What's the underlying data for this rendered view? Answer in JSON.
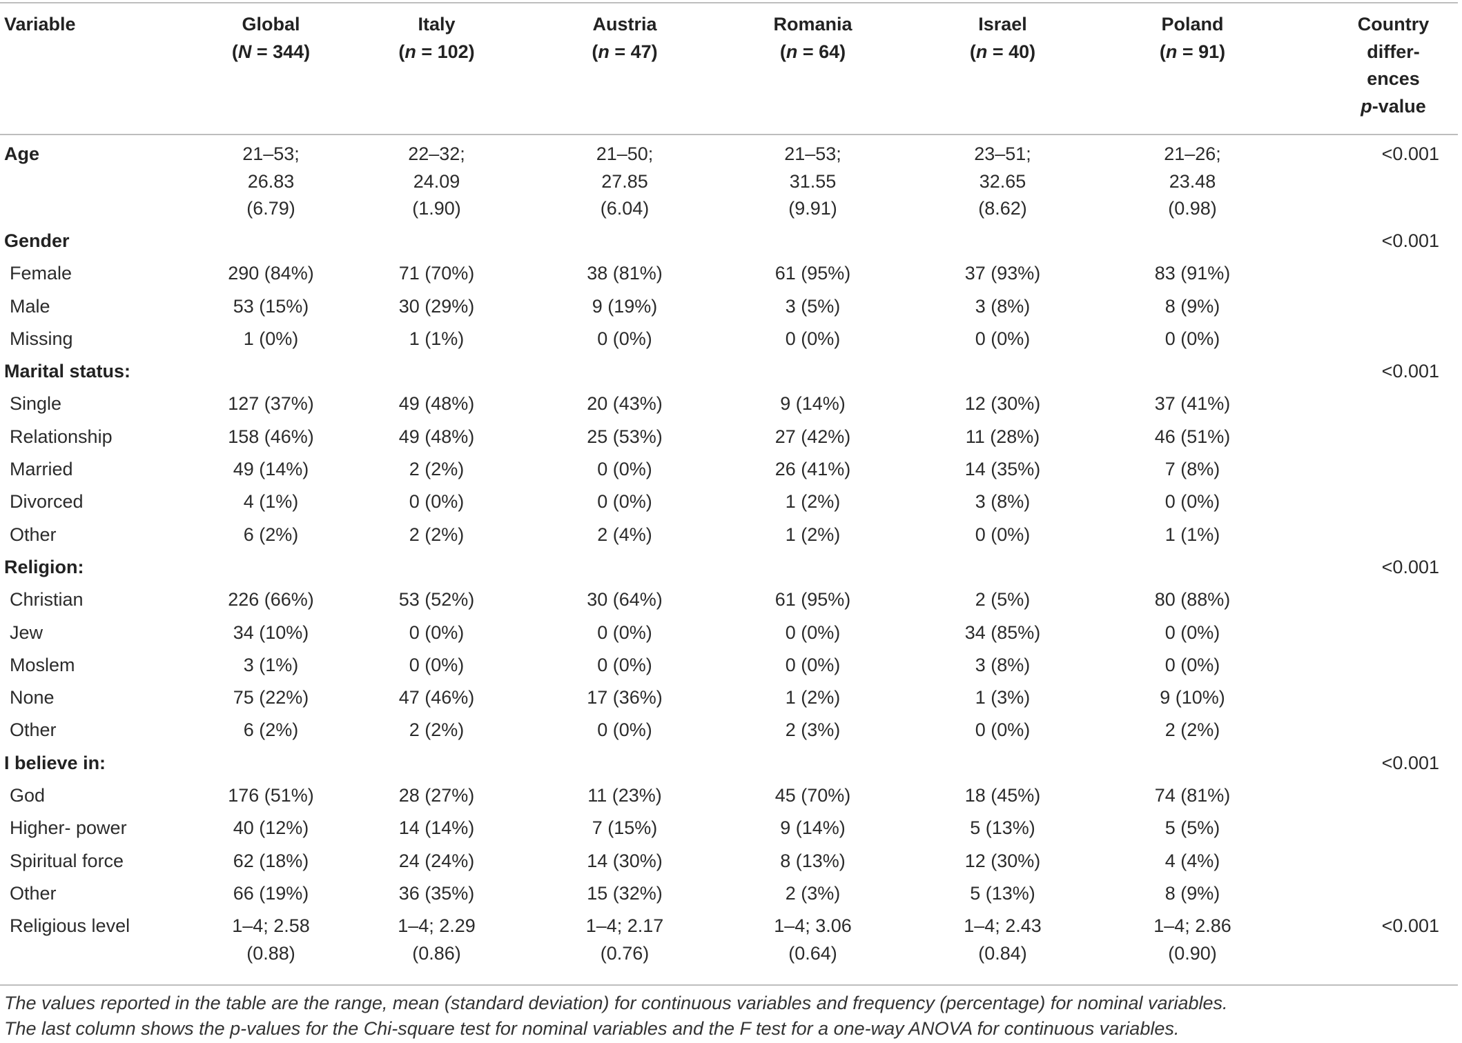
{
  "header": {
    "variable": "Variable",
    "columns": [
      {
        "name": "Global",
        "n_prefix": "N",
        "n_value": "= 344"
      },
      {
        "name": "Italy",
        "n_prefix": "n",
        "n_value": "= 102"
      },
      {
        "name": "Austria",
        "n_prefix": "n",
        "n_value": "= 47"
      },
      {
        "name": "Romania",
        "n_prefix": "n",
        "n_value": "= 64"
      },
      {
        "name": "Israel",
        "n_prefix": "n",
        "n_value": "= 40"
      },
      {
        "name": "Poland",
        "n_prefix": "n",
        "n_value": "= 91"
      }
    ],
    "pvalue_lines": [
      "Country",
      "differ-",
      "ences"
    ],
    "pvalue_italic": "p",
    "pvalue_suffix": "-value"
  },
  "age": {
    "label": "Age",
    "values": [
      [
        "21–53;",
        "26.83",
        "(6.79)"
      ],
      [
        "22–32;",
        "24.09",
        "(1.90)"
      ],
      [
        "21–50;",
        "27.85",
        "(6.04)"
      ],
      [
        "21–53;",
        "31.55",
        "(9.91)"
      ],
      [
        "23–51;",
        "32.65",
        "(8.62)"
      ],
      [
        "21–26;",
        "23.48",
        "(0.98)"
      ]
    ],
    "p": "<0.001"
  },
  "sections": [
    {
      "title": "Gender",
      "p": "<0.001",
      "rows": [
        {
          "label": "Female",
          "values": [
            "290 (84%)",
            "71 (70%)",
            "38 (81%)",
            "61 (95%)",
            "37 (93%)",
            "83 (91%)"
          ]
        },
        {
          "label": "Male",
          "values": [
            "53 (15%)",
            "30 (29%)",
            "9 (19%)",
            "3 (5%)",
            "3 (8%)",
            "8 (9%)"
          ]
        },
        {
          "label": "Missing",
          "values": [
            "1 (0%)",
            "1 (1%)",
            "0 (0%)",
            "0 (0%)",
            "0 (0%)",
            "0 (0%)"
          ]
        }
      ]
    },
    {
      "title": "Marital status:",
      "p": "<0.001",
      "rows": [
        {
          "label": "Single",
          "values": [
            "127 (37%)",
            "49 (48%)",
            "20 (43%)",
            "9 (14%)",
            "12 (30%)",
            "37 (41%)"
          ]
        },
        {
          "label": "Relationship",
          "values": [
            "158 (46%)",
            "49 (48%)",
            "25 (53%)",
            "27 (42%)",
            "11 (28%)",
            "46 (51%)"
          ]
        },
        {
          "label": "Married",
          "values": [
            "49 (14%)",
            "2 (2%)",
            "0 (0%)",
            "26 (41%)",
            "14 (35%)",
            "7 (8%)"
          ]
        },
        {
          "label": "Divorced",
          "values": [
            "4 (1%)",
            "0 (0%)",
            "0 (0%)",
            "1 (2%)",
            "3 (8%)",
            "0 (0%)"
          ]
        },
        {
          "label": "Other",
          "values": [
            "6 (2%)",
            "2 (2%)",
            "2 (4%)",
            "1 (2%)",
            "0 (0%)",
            "1 (1%)"
          ]
        }
      ]
    },
    {
      "title": "Religion:",
      "p": "<0.001",
      "rows": [
        {
          "label": "Christian",
          "values": [
            "226 (66%)",
            "53 (52%)",
            "30 (64%)",
            "61 (95%)",
            "2 (5%)",
            "80 (88%)"
          ]
        },
        {
          "label": "Jew",
          "values": [
            "34 (10%)",
            "0 (0%)",
            "0 (0%)",
            "0 (0%)",
            "34 (85%)",
            "0 (0%)"
          ]
        },
        {
          "label": "Moslem",
          "values": [
            "3 (1%)",
            "0 (0%)",
            "0 (0%)",
            "0 (0%)",
            "3 (8%)",
            "0 (0%)"
          ]
        },
        {
          "label": "None",
          "values": [
            "75 (22%)",
            "47 (46%)",
            "17 (36%)",
            "1 (2%)",
            "1 (3%)",
            "9 (10%)"
          ]
        },
        {
          "label": "Other",
          "values": [
            "6 (2%)",
            "2 (2%)",
            "0 (0%)",
            "2 (3%)",
            "0 (0%)",
            "2 (2%)"
          ]
        }
      ]
    },
    {
      "title": "I believe in:",
      "p": "<0.001",
      "rows": [
        {
          "label": "God",
          "values": [
            "176 (51%)",
            "28 (27%)",
            "11 (23%)",
            "45 (70%)",
            "18 (45%)",
            "74 (81%)"
          ]
        },
        {
          "label": "Higher- power",
          "values": [
            "40 (12%)",
            "14 (14%)",
            "7 (15%)",
            "9 (14%)",
            "5 (13%)",
            "5 (5%)"
          ]
        },
        {
          "label": "Spiritual force",
          "values": [
            "62 (18%)",
            "24 (24%)",
            "14 (30%)",
            "8 (13%)",
            "12 (30%)",
            "4 (4%)"
          ]
        },
        {
          "label": "Other",
          "values": [
            "66 (19%)",
            "36 (35%)",
            "15 (32%)",
            "2 (3%)",
            "5 (13%)",
            "8 (9%)"
          ]
        }
      ]
    }
  ],
  "religious_level": {
    "label": "Religious level",
    "values": [
      [
        "1–4; 2.58",
        "(0.88)"
      ],
      [
        "1–4; 2.29",
        "(0.86)"
      ],
      [
        "1–4; 2.17",
        "(0.76)"
      ],
      [
        "1–4; 3.06",
        "(0.64)"
      ],
      [
        "1–4; 2.43",
        "(0.84)"
      ],
      [
        "1–4; 2.86",
        "(0.90)"
      ]
    ],
    "p": "<0.001"
  },
  "notes": [
    "The values reported in the table are the range, mean (standard deviation) for continuous variables and frequency (percentage) for nominal variables.",
    "The last column shows the p-values for the Chi-square test for nominal variables and the F test for a one-way ANOVA for continuous variables."
  ]
}
